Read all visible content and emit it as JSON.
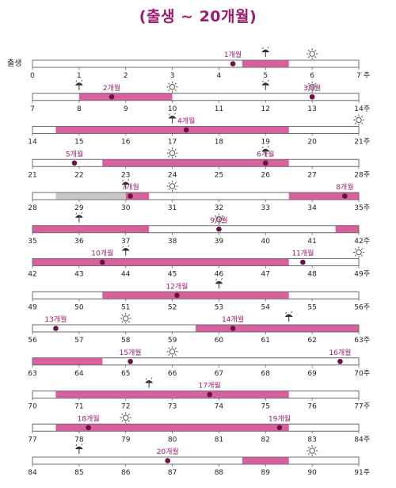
{
  "title": "(출생 ~ 20개월)",
  "birth_label": "출생",
  "week_unit": "주",
  "colors": {
    "magenta": "#d9609f",
    "gray": "#c8c8c8",
    "dot": "#6b1145",
    "label": "#9b1b6e",
    "icon": "#555555"
  },
  "rows": [
    {
      "start": 0,
      "bars": [
        {
          "from": 4.5,
          "to": 5.5,
          "color": "magenta"
        }
      ],
      "dots": [
        {
          "week": 4.3,
          "label": "1개월"
        }
      ],
      "rain": [
        5
      ],
      "sun": [
        6
      ]
    },
    {
      "start": 7,
      "bars": [
        {
          "from": 8,
          "to": 10,
          "color": "magenta"
        }
      ],
      "dots": [
        {
          "week": 8.7,
          "label": "2개월"
        },
        {
          "week": 13,
          "label": "3개월"
        }
      ],
      "rain": [
        8,
        12
      ],
      "sun": [
        10,
        13
      ]
    },
    {
      "start": 14,
      "bars": [
        {
          "from": 14.5,
          "to": 19.5,
          "color": "magenta"
        }
      ],
      "dots": [
        {
          "week": 17.3,
          "label": "4개월"
        }
      ],
      "rain": [
        17
      ],
      "sun": [
        21
      ]
    },
    {
      "start": 21,
      "bars": [
        {
          "from": 22.5,
          "to": 26.5,
          "color": "magenta"
        }
      ],
      "dots": [
        {
          "week": 21.9,
          "label": "5개월"
        },
        {
          "week": 26,
          "label": "6개월"
        }
      ],
      "rain": [
        26
      ],
      "sun": [
        24
      ]
    },
    {
      "start": 28,
      "bars": [
        {
          "from": 28.5,
          "to": 30,
          "color": "gray"
        },
        {
          "from": 30,
          "to": 30.5,
          "color": "magenta"
        },
        {
          "from": 33.5,
          "to": 35,
          "color": "magenta"
        }
      ],
      "dots": [
        {
          "week": 30.1,
          "label": "7개월"
        },
        {
          "week": 34.7,
          "label": "8개월"
        }
      ],
      "rain": [
        30
      ],
      "sun": [
        31
      ]
    },
    {
      "start": 35,
      "bars": [
        {
          "from": 35,
          "to": 37.5,
          "color": "magenta"
        },
        {
          "from": 41.5,
          "to": 42,
          "color": "magenta"
        }
      ],
      "dots": [
        {
          "week": 39,
          "label": "9개월"
        }
      ],
      "rain": [
        36
      ],
      "sun": [
        39
      ]
    },
    {
      "start": 42,
      "bars": [
        {
          "from": 42,
          "to": 47.5,
          "color": "magenta"
        }
      ],
      "dots": [
        {
          "week": 43.5,
          "label": "10개월"
        },
        {
          "week": 47.8,
          "label": "11개월"
        }
      ],
      "rain": [
        44
      ],
      "sun": [
        49
      ]
    },
    {
      "start": 49,
      "bars": [
        {
          "from": 50.5,
          "to": 54.5,
          "color": "magenta"
        }
      ],
      "dots": [
        {
          "week": 52.1,
          "label": "12개월"
        }
      ],
      "rain": [
        53
      ],
      "sun": []
    },
    {
      "start": 56,
      "bars": [
        {
          "from": 59.5,
          "to": 63,
          "color": "magenta"
        }
      ],
      "dots": [
        {
          "week": 56.5,
          "label": "13개월"
        },
        {
          "week": 60.3,
          "label": "14개월"
        }
      ],
      "rain": [
        61.5
      ],
      "sun": [
        58
      ]
    },
    {
      "start": 63,
      "bars": [
        {
          "from": 63,
          "to": 64.5,
          "color": "magenta"
        }
      ],
      "dots": [
        {
          "week": 65.1,
          "label": "15개월"
        },
        {
          "week": 69.6,
          "label": "16개월"
        }
      ],
      "rain": [],
      "sun": [
        66
      ]
    },
    {
      "start": 70,
      "bars": [
        {
          "from": 70.5,
          "to": 75.5,
          "color": "magenta"
        }
      ],
      "dots": [
        {
          "week": 73.8,
          "label": "17개월"
        }
      ],
      "rain": [
        72.5
      ],
      "sun": []
    },
    {
      "start": 77,
      "bars": [
        {
          "from": 77.5,
          "to": 82.5,
          "color": "magenta"
        }
      ],
      "dots": [
        {
          "week": 78.2,
          "label": "18개월"
        },
        {
          "week": 82.3,
          "label": "19개월"
        }
      ],
      "rain": [],
      "sun": [
        79
      ]
    },
    {
      "start": 84,
      "bars": [
        {
          "from": 88.5,
          "to": 89.5,
          "color": "magenta"
        }
      ],
      "dots": [
        {
          "week": 86.9,
          "label": "20개월"
        }
      ],
      "rain": [
        85
      ],
      "sun": [
        90
      ]
    }
  ]
}
